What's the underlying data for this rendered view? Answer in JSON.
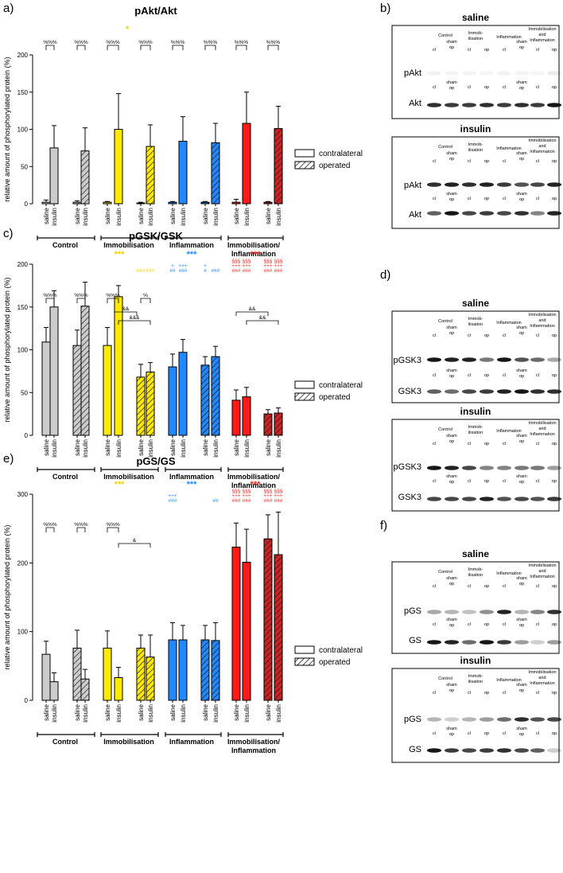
{
  "colors": {
    "control": "#cccccc",
    "immobilisation": "#ffea00",
    "inflammation": "#2288ff",
    "immob_inflam": "#ff1a1a",
    "immob_inflam_dark": "#cc2222",
    "star_yellow": "#f2d400",
    "star_blue": "#2288ff",
    "star_red": "#ee2222"
  },
  "legend": {
    "contralateral": "contralateral",
    "operated": "operated"
  },
  "bar_labels": [
    "saline",
    "insulin",
    "saline",
    "insulin",
    "saline",
    "insulin",
    "saline",
    "insulin",
    "saline",
    "insulin",
    "saline",
    "insulin",
    "saline",
    "insulin",
    "saline",
    "insulin"
  ],
  "group_labels": [
    "Control",
    "Immobilisation",
    "Inflammation",
    "Immobilisation/",
    "Inflammation"
  ],
  "ylabel": "relative amount of phosphorylated protein (%)",
  "chart_data": [
    {
      "type": "bar",
      "panel": "a)",
      "title": "pAkt/Akt",
      "ylim": [
        0,
        200
      ],
      "yticks": [
        "0",
        "50",
        "100",
        "150",
        "200"
      ],
      "values": [
        2,
        75,
        2,
        71,
        2,
        100,
        1,
        77,
        2,
        84,
        2,
        82,
        2,
        108,
        2,
        101
      ],
      "errors": [
        3,
        30,
        2,
        31,
        1,
        48,
        1,
        29,
        1,
        33,
        1,
        26,
        4,
        42,
        1,
        30
      ],
      "pair_marks": [
        "%%%",
        "%%%",
        "%%%",
        "%%%",
        "%%%",
        "%%%",
        "%%%",
        "%%%"
      ],
      "stars": [
        {
          "text": "*",
          "color": "star_yellow"
        }
      ]
    },
    {
      "type": "bar",
      "panel": "c)",
      "title": "pGSK/GSK",
      "ylim": [
        0,
        200
      ],
      "yticks": [
        "0",
        "50",
        "100",
        "150",
        "200"
      ],
      "values": [
        109,
        150,
        105,
        151,
        105,
        162,
        68,
        74,
        80,
        97,
        82,
        92,
        41,
        45,
        25,
        26
      ],
      "errors": [
        17,
        19,
        18,
        28,
        21,
        13,
        15,
        11,
        15,
        15,
        10,
        12,
        12,
        11,
        5,
        6
      ],
      "pair_marks": [
        "%%%",
        "%%%",
        "%%%",
        "%"
      ],
      "brackets": [
        "&&",
        "&&&",
        "&&",
        "&&"
      ],
      "stars": [
        {
          "text": "***",
          "color": "star_yellow"
        },
        {
          "text": "***",
          "color": "star_blue"
        },
        {
          "text": "***",
          "color": "star_red"
        }
      ],
      "bar_marks": [
        "",
        "",
        "",
        "",
        "",
        "",
        "###",
        "###",
        "+|##",
        "+++|###",
        "+|#",
        "###",
        "§§§|+++|###",
        "§§§|+++|###",
        "§§§|+++|###",
        "§§§|+++|###"
      ]
    },
    {
      "type": "bar",
      "panel": "e)",
      "title": "pGS/GS",
      "ylim": [
        0,
        300
      ],
      "yticks": [
        "0",
        "100",
        "200",
        "300"
      ],
      "values": [
        67,
        27,
        76,
        31,
        76,
        33,
        76,
        63,
        88,
        88,
        88,
        87,
        223,
        201,
        235,
        212
      ],
      "errors": [
        19,
        13,
        26,
        14,
        25,
        15,
        19,
        32,
        25,
        21,
        21,
        26,
        35,
        48,
        35,
        62
      ],
      "pair_marks": [
        "%%%",
        "%%%",
        "%%%"
      ],
      "brackets": [
        "&"
      ],
      "stars": [
        {
          "text": "***",
          "color": "star_yellow"
        },
        {
          "text": "***",
          "color": "star_blue"
        },
        {
          "text": "***",
          "color": "star_red"
        }
      ],
      "bar_marks": [
        "",
        "",
        "",
        "",
        "",
        "",
        "",
        "",
        "+++|###",
        "",
        "",
        "##",
        "§§§|+++|###",
        "§§§|+++|###",
        "§§§|+++|###",
        "§§§|+++|###"
      ]
    }
  ],
  "blots": [
    {
      "panel": "b)",
      "boxes": [
        {
          "title": "saline",
          "rows": [
            "pAkt",
            "Akt"
          ]
        },
        {
          "title": "insulin",
          "rows": [
            "pAkt",
            "Akt"
          ]
        }
      ]
    },
    {
      "panel": "d)",
      "boxes": [
        {
          "title": "saline",
          "rows": [
            "pGSK3",
            "GSK3"
          ]
        },
        {
          "title": "insulin",
          "rows": [
            "pGSK3",
            "GSK3"
          ]
        }
      ]
    },
    {
      "panel": "f)",
      "boxes": [
        {
          "title": "saline",
          "rows": [
            "pGS",
            "GS"
          ]
        },
        {
          "title": "insulin",
          "rows": [
            "pGS",
            "GS"
          ]
        }
      ]
    }
  ],
  "blot_header": {
    "control": "Control",
    "immob_1": "Immob-",
    "immob_2": "ilisation",
    "inflammation": "Inflammation",
    "ii_1": "Immobilisation",
    "ii_2": "and",
    "ii_3": "Inflammation",
    "cl": "cl",
    "op": "op",
    "sham": "sham",
    "sham_op": "op"
  }
}
